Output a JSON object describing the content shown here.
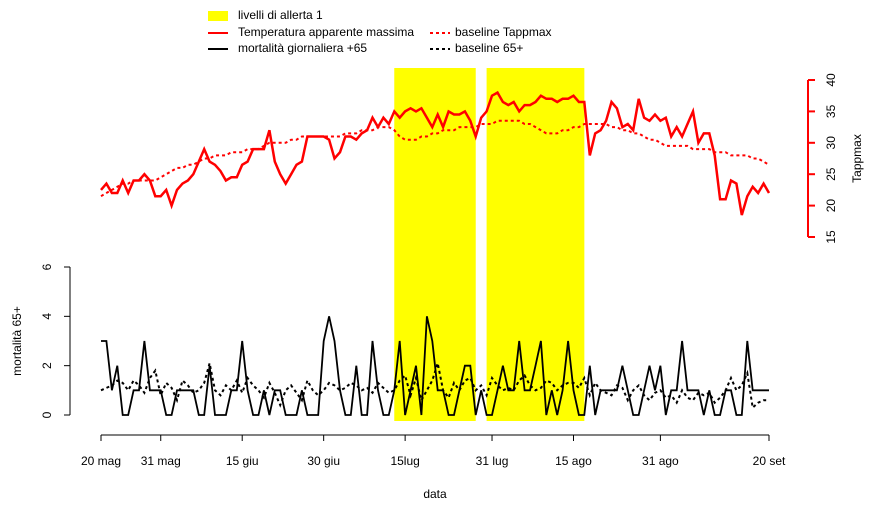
{
  "chart_data": [
    {
      "type": "line",
      "highlights": {
        "name": "livelli di allerta 1",
        "color": "#ffff00",
        "ranges": [
          [
            54,
            69
          ],
          [
            71,
            89
          ]
        ]
      },
      "x": [
        0,
        1,
        2,
        3,
        4,
        5,
        6,
        7,
        8,
        9,
        10,
        11,
        12,
        13,
        14,
        15,
        16,
        17,
        18,
        19,
        20,
        21,
        22,
        23,
        24,
        25,
        26,
        27,
        28,
        29,
        30,
        31,
        32,
        33,
        34,
        35,
        36,
        37,
        38,
        39,
        40,
        41,
        42,
        43,
        44,
        45,
        46,
        47,
        48,
        49,
        50,
        51,
        52,
        53,
        54,
        55,
        56,
        57,
        58,
        59,
        60,
        61,
        62,
        63,
        64,
        65,
        66,
        67,
        68,
        69,
        70,
        71,
        72,
        73,
        74,
        75,
        76,
        77,
        78,
        79,
        80,
        81,
        82,
        83,
        84,
        85,
        86,
        87,
        88,
        89,
        90,
        91,
        92,
        93,
        94,
        95,
        96,
        97,
        98,
        99,
        100,
        101,
        102,
        103,
        104,
        105,
        106,
        107,
        108,
        109,
        110,
        111,
        112,
        113,
        114,
        115,
        116,
        117,
        118,
        119,
        120,
        121,
        122,
        123
      ],
      "xlim": [
        0,
        123
      ],
      "y2label": "Tappmax",
      "y2lim": [
        15,
        40
      ],
      "y2ticks": [
        15,
        20,
        25,
        30,
        35,
        40
      ],
      "series": [
        {
          "name": "Temperatura apparente massima",
          "color": "#ff0000",
          "dash": "solid",
          "axis": "y2",
          "values": [
            22.5,
            23.5,
            22,
            22,
            24,
            22,
            24,
            24,
            25,
            24,
            21.5,
            21.5,
            22.5,
            20,
            22.5,
            23.5,
            24,
            25,
            27,
            29,
            27,
            26.5,
            25.5,
            24,
            24.5,
            24.5,
            26.5,
            27,
            29,
            29,
            29,
            32,
            27,
            25,
            23.5,
            25,
            26.5,
            27,
            31,
            31,
            31,
            31,
            30.5,
            27.5,
            28.5,
            31,
            31,
            30.5,
            31.5,
            32,
            34,
            32.5,
            34,
            33,
            35,
            34,
            35,
            35.5,
            35,
            35.5,
            34,
            32.5,
            34.5,
            32.5,
            35,
            34.5,
            34.5,
            35,
            33.5,
            31,
            34,
            35,
            37.5,
            38,
            36.5,
            36,
            36.5,
            35,
            36,
            36,
            36.5,
            37.5,
            37,
            37,
            36.5,
            37,
            37,
            37.5,
            36.5,
            36.5,
            28,
            31.5,
            32,
            33.5,
            36.5,
            35.5,
            32.5,
            33,
            32,
            37,
            34,
            33.5,
            34.5,
            33.5,
            34,
            31,
            32.5,
            31,
            33,
            35,
            30,
            31.5,
            31.5,
            28,
            21,
            21,
            24,
            23.5,
            18.5,
            21.5,
            23,
            22,
            23.5,
            22
          ]
        },
        {
          "name": "baseline Tappmax",
          "color": "#ff0000",
          "dash": "dotted",
          "axis": "y2",
          "values": [
            21.5,
            22,
            22.5,
            23,
            23.5,
            23.5,
            24,
            24,
            24,
            24,
            24,
            24.5,
            25,
            25.5,
            26,
            26,
            26.5,
            26.5,
            27,
            27.5,
            27.5,
            28,
            28,
            28,
            28.5,
            28.5,
            28.5,
            29,
            29,
            29,
            29.5,
            30,
            30,
            30,
            30,
            30.5,
            30.5,
            31,
            31,
            31,
            31,
            31,
            31,
            31,
            31,
            31.5,
            31.5,
            31.5,
            32,
            32,
            32,
            32.5,
            32.5,
            32.5,
            32,
            31,
            30.5,
            30.5,
            30.5,
            31,
            31,
            31.5,
            31.5,
            32,
            32,
            32,
            32.5,
            32.5,
            32.5,
            32.5,
            33,
            33,
            33,
            33.5,
            33.5,
            33.5,
            33.5,
            33.5,
            33,
            33,
            32.5,
            32,
            31.5,
            31.5,
            31.5,
            32,
            32,
            32.5,
            32.5,
            33,
            33,
            33,
            33,
            33,
            32.5,
            32.5,
            32,
            32,
            31.5,
            31.5,
            31,
            30.5,
            30.5,
            30,
            29.5,
            29.5,
            29.5,
            29.5,
            29.5,
            29,
            29,
            29,
            29,
            28.5,
            28.5,
            28.5,
            28,
            28,
            28,
            28,
            27.5,
            27.5,
            27,
            26.5
          ]
        }
      ]
    },
    {
      "type": "line",
      "x": [
        0,
        1,
        2,
        3,
        4,
        5,
        6,
        7,
        8,
        9,
        10,
        11,
        12,
        13,
        14,
        15,
        16,
        17,
        18,
        19,
        20,
        21,
        22,
        23,
        24,
        25,
        26,
        27,
        28,
        29,
        30,
        31,
        32,
        33,
        34,
        35,
        36,
        37,
        38,
        39,
        40,
        41,
        42,
        43,
        44,
        45,
        46,
        47,
        48,
        49,
        50,
        51,
        52,
        53,
        54,
        55,
        56,
        57,
        58,
        59,
        60,
        61,
        62,
        63,
        64,
        65,
        66,
        67,
        68,
        69,
        70,
        71,
        72,
        73,
        74,
        75,
        76,
        77,
        78,
        79,
        80,
        81,
        82,
        83,
        84,
        85,
        86,
        87,
        88,
        89,
        90,
        91,
        92,
        93,
        94,
        95,
        96,
        97,
        98,
        99,
        100,
        101,
        102,
        103,
        104,
        105,
        106,
        107,
        108,
        109,
        110,
        111,
        112,
        113,
        114,
        115,
        116,
        117,
        118,
        119,
        120,
        121,
        122,
        123
      ],
      "xlim": [
        0,
        123
      ],
      "xticks": [
        {
          "value": 0,
          "label": "20 mag"
        },
        {
          "value": 11,
          "label": "31 mag"
        },
        {
          "value": 26,
          "label": "15 giu"
        },
        {
          "value": 41,
          "label": "30 giu"
        },
        {
          "value": 56,
          "label": "15lug"
        },
        {
          "value": 72,
          "label": "31 lug"
        },
        {
          "value": 87,
          "label": "15 ago"
        },
        {
          "value": 103,
          "label": "31 ago"
        },
        {
          "value": 123,
          "label": "20 set"
        }
      ],
      "xlabel": "data",
      "ylabel": "mortalità 65+",
      "ylim": [
        0,
        6
      ],
      "yticks": [
        0,
        2,
        4,
        6
      ],
      "series": [
        {
          "name": "mortalità giornaliera +65",
          "color": "#000000",
          "dash": "solid",
          "values": [
            3,
            3,
            1,
            2,
            0,
            0,
            1,
            1,
            3,
            1,
            1,
            1,
            0,
            0,
            1,
            1,
            1,
            1,
            0,
            0,
            2,
            0,
            0,
            0,
            1,
            1,
            3,
            1,
            0,
            0,
            1,
            0,
            1,
            1,
            0,
            0,
            0,
            1,
            0,
            0,
            0,
            3,
            4,
            3,
            1,
            0,
            0,
            2,
            0,
            0,
            3,
            1,
            0,
            0,
            1,
            3,
            0,
            1,
            2,
            0,
            4,
            3,
            1,
            1,
            0,
            0,
            1,
            2,
            2,
            0,
            1,
            0,
            0,
            1,
            2,
            1,
            1,
            3,
            1,
            1,
            2,
            3,
            0,
            1,
            0,
            1,
            3,
            1,
            0,
            0,
            2,
            0,
            1,
            1,
            1,
            1,
            2,
            1,
            0,
            0,
            1,
            2,
            1,
            2,
            0,
            1,
            1,
            3,
            1,
            1,
            1,
            0,
            1,
            0,
            0,
            1,
            1,
            0,
            0,
            3,
            1,
            1,
            1,
            1
          ]
        },
        {
          "name": "baseline 65+",
          "color": "#000000",
          "dash": "dotted",
          "values": [
            1,
            1.1,
            1.2,
            1.4,
            1.3,
            1.0,
            1.4,
            1.2,
            0.9,
            1.5,
            1.8,
            0.8,
            1.3,
            1.1,
            0.6,
            1.4,
            1.2,
            0.9,
            1.0,
            1.3,
            2.1,
            1.0,
            0.8,
            1.2,
            1.0,
            1.4,
            0.9,
            1.5,
            1.2,
            1.0,
            0.7,
            1.3,
            0.9,
            0.4,
            1.0,
            1.2,
            0.9,
            0.6,
            1.4,
            1.0,
            0.8,
            1.0,
            1.3,
            1.2,
            1.0,
            1.1,
            1.3,
            1.2,
            1.0,
            1.1,
            0.9,
            1.3,
            1.1,
            0.9,
            1.0,
            1.4,
            1.6,
            0.8,
            1.5,
            0.6,
            1.0,
            1.4,
            2.1,
            1.0,
            0.7,
            1.3,
            1.0,
            1.4,
            1.5,
            1.0,
            1.2,
            0.8,
            1.5,
            1.2,
            1.0,
            1.1,
            1.0,
            1.4,
            1.6,
            1.2,
            1.0,
            1.1,
            1.4,
            1.3,
            1.0,
            1.2,
            1.3,
            1.3,
            1.1,
            1.5,
            0.8,
            1.3,
            1.0,
            0.9,
            0.8,
            1.2,
            1.1,
            0.6,
            1.0,
            1.2,
            0.8,
            0.6,
            0.9,
            1.0,
            0.7,
            0.8,
            0.5,
            1.0,
            0.7,
            0.6,
            0.9,
            0.8,
            0.9,
            0.5,
            0.7,
            1.0,
            1.5,
            1.0,
            1.2,
            1.7,
            0.3,
            0.5,
            0.6,
            0.6
          ]
        }
      ]
    }
  ]
}
